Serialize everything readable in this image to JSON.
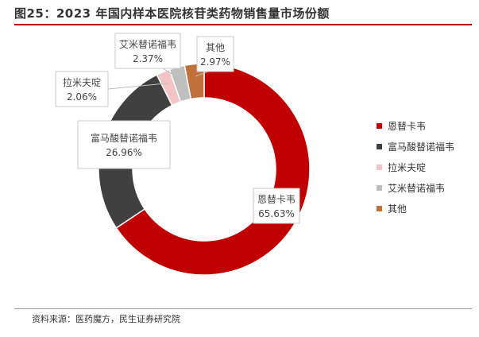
{
  "title": "图25：2023 年国内样本医院核苷类药物销售量市场份额",
  "source": "资料来源：医药魔方，民生证券研究院",
  "chart_data": {
    "type": "pie",
    "donut": true,
    "title": "图25：2023 年国内样本医院核苷类药物销售量市场份额",
    "legend_position": "right",
    "slices": [
      {
        "name": "恩替卡韦",
        "value": 65.63,
        "label": "65.63%",
        "color": "#C00000"
      },
      {
        "name": "富马酸替诺福韦",
        "value": 26.96,
        "label": "26.96%",
        "color": "#404040"
      },
      {
        "name": "拉米夫啶",
        "value": 2.06,
        "label": "2.06%",
        "color": "#F2C4C4"
      },
      {
        "name": "艾米替诺福韦",
        "value": 2.37,
        "label": "2.37%",
        "color": "#BFBFBF"
      },
      {
        "name": "其他",
        "value": 2.97,
        "label": "2.97%",
        "color": "#C0703A"
      }
    ]
  }
}
